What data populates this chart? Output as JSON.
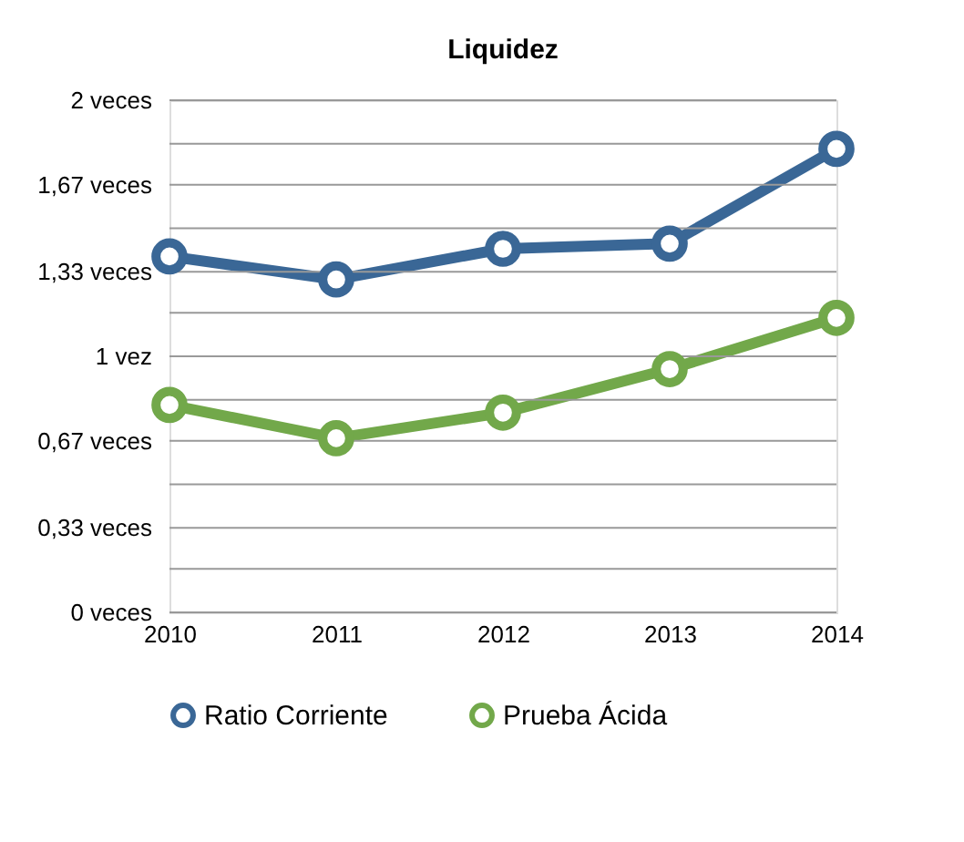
{
  "chart_data": {
    "type": "line",
    "title": "Liquidez",
    "categories": [
      "2010",
      "2011",
      "2012",
      "2013",
      "2014"
    ],
    "series": [
      {
        "name": "Ratio Corriente",
        "color": "#3a6796",
        "values": [
          1.39,
          1.3,
          1.42,
          1.44,
          1.81
        ]
      },
      {
        "name": "Prueba Ácida",
        "color": "#72a84a",
        "values": [
          0.81,
          0.68,
          0.78,
          0.95,
          1.15
        ]
      }
    ],
    "ylim": [
      0,
      2
    ],
    "yticks": [
      {
        "value": 0,
        "label": "0 veces"
      },
      {
        "value": 0.17,
        "label": null
      },
      {
        "value": 0.33,
        "label": "0,33 veces"
      },
      {
        "value": 0.5,
        "label": null
      },
      {
        "value": 0.67,
        "label": "0,67 veces"
      },
      {
        "value": 0.83,
        "label": null
      },
      {
        "value": 1,
        "label": "1 vez"
      },
      {
        "value": 1.17,
        "label": null
      },
      {
        "value": 1.33,
        "label": "1,33 veces"
      },
      {
        "value": 1.5,
        "label": null
      },
      {
        "value": 1.67,
        "label": "1,67 veces"
      },
      {
        "value": 1.83,
        "label": null
      },
      {
        "value": 2,
        "label": "2 veces"
      }
    ],
    "grid": "y",
    "legend": "bottom",
    "marker": "circle",
    "line_style": "solid"
  }
}
